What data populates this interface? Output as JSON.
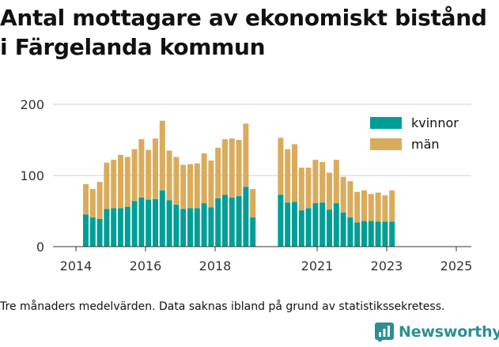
{
  "title": "Antal mottagare av ekonomiskt bistånd i Färgelanda kommun",
  "note": "Tre månaders medelvärden. Data saknas ibland på grund av statistikssekretess.",
  "brand": "Newsworthy",
  "colors": {
    "kvinnor": "#009e96",
    "man": "#d9ac5c",
    "grid": "#d0d0d0",
    "axis": "#333333",
    "brand": "#2c8f93"
  },
  "chart_data": {
    "type": "bar",
    "stacked": true,
    "title": "Antal mottagare av ekonomiskt bistånd i Färgelanda kommun",
    "xlabel": "",
    "ylabel": "",
    "ylim": [
      0,
      200
    ],
    "yticks": [
      0,
      100,
      200
    ],
    "xticks": [
      "2014",
      "2016",
      "2018",
      "2021",
      "2023",
      "2025"
    ],
    "legend_position": "top-right",
    "grid": true,
    "series": [
      {
        "name": "kvinnor",
        "values": [
          45,
          41,
          39,
          53,
          54,
          54,
          56,
          64,
          69,
          66,
          67,
          79,
          65,
          59,
          53,
          54,
          54,
          61,
          55,
          68,
          73,
          69,
          71,
          84,
          41,
          null,
          null,
          null,
          73,
          62,
          63,
          51,
          54,
          61,
          62,
          52,
          61,
          48,
          41,
          34,
          36,
          36,
          35,
          35,
          35
        ]
      },
      {
        "name": "män",
        "values": [
          43,
          40,
          52,
          65,
          68,
          75,
          70,
          73,
          82,
          70,
          85,
          98,
          70,
          67,
          62,
          62,
          63,
          70,
          66,
          71,
          78,
          83,
          79,
          89,
          40,
          null,
          null,
          null,
          80,
          75,
          81,
          60,
          57,
          61,
          57,
          52,
          61,
          50,
          51,
          43,
          43,
          38,
          41,
          37,
          44
        ]
      }
    ]
  }
}
